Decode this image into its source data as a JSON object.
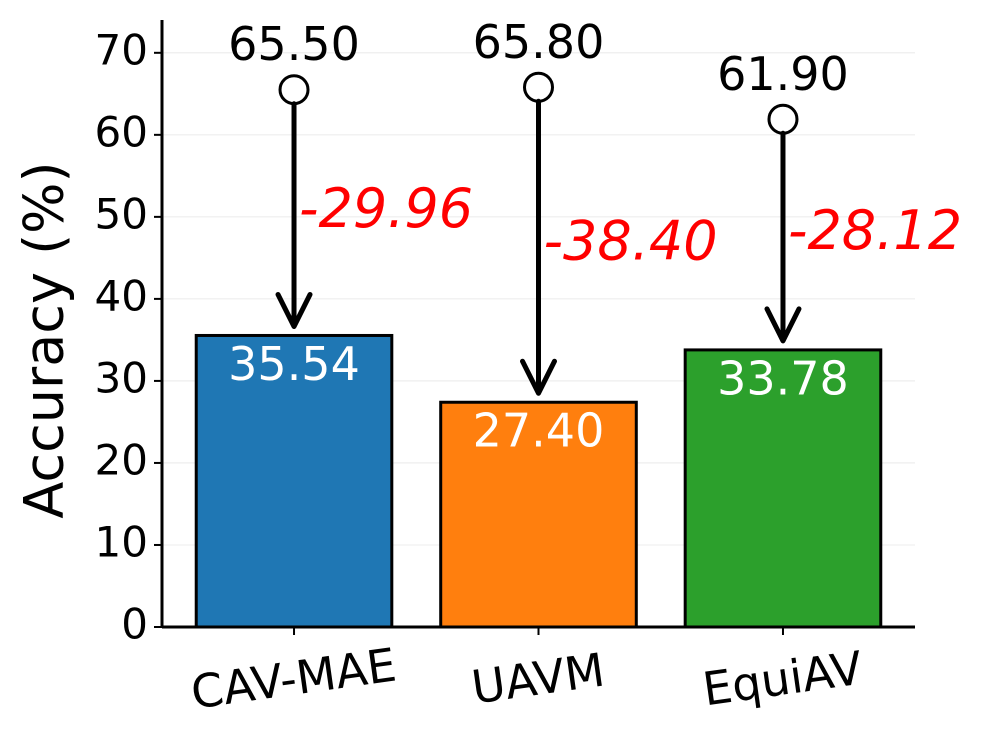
{
  "chart_data": {
    "type": "bar",
    "y_label": "Accuracy (%)",
    "categories": [
      "CAV-MAE",
      "UAVM",
      "EquiAV"
    ],
    "values": [
      35.54,
      27.4,
      33.78
    ],
    "value_labels": [
      "35.54",
      "27.40",
      "33.78"
    ],
    "colors": [
      "#1f77b4",
      "#ff7f0e",
      "#2ca02c"
    ],
    "reference": {
      "values": [
        65.5,
        65.8,
        61.9
      ],
      "value_labels": [
        "65.50",
        "65.80",
        "61.90"
      ]
    },
    "drops": {
      "values": [
        -29.96,
        -38.4,
        -28.12
      ],
      "value_labels": [
        "-29.96",
        "-38.40",
        "-28.12"
      ],
      "color": "#ff0000"
    },
    "ylim": [
      0,
      74
    ],
    "yticks": [
      0,
      10,
      20,
      30,
      40,
      50,
      60,
      70
    ],
    "grid": true
  }
}
